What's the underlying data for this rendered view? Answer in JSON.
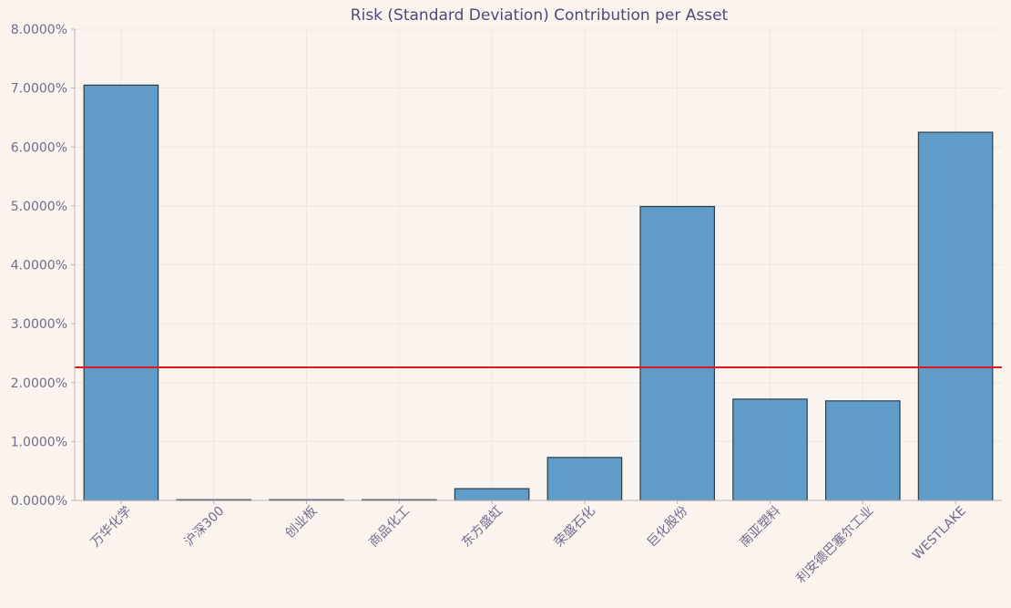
{
  "chart_data": {
    "type": "bar",
    "title": "Risk (Standard Deviation) Contribution per Asset",
    "xlabel": "",
    "ylabel": "",
    "categories": [
      "万华化学",
      "沪深300",
      "创业板",
      "商品化工",
      "东方盛虹",
      "荣盛石化",
      "巨化股份",
      "南亚塑料",
      "利安德巴塞尔工业",
      "WESTLAKE"
    ],
    "values": [
      7.05,
      0.0,
      0.0,
      0.0,
      0.2,
      0.73,
      4.99,
      1.72,
      1.69,
      6.25
    ],
    "ylim": [
      0,
      8
    ],
    "y_ticks": [
      0,
      1,
      2,
      3,
      4,
      5,
      6,
      7,
      8
    ],
    "y_tick_labels": [
      "0.0000%",
      "1.0000%",
      "2.0000%",
      "3.0000%",
      "4.0000%",
      "5.0000%",
      "6.0000%",
      "7.0000%",
      "8.0000%"
    ],
    "reference_line": {
      "value": 2.26,
      "color": "#e3161b"
    },
    "bar_color": "#5f9cc8",
    "grid": true,
    "legend": "none"
  }
}
